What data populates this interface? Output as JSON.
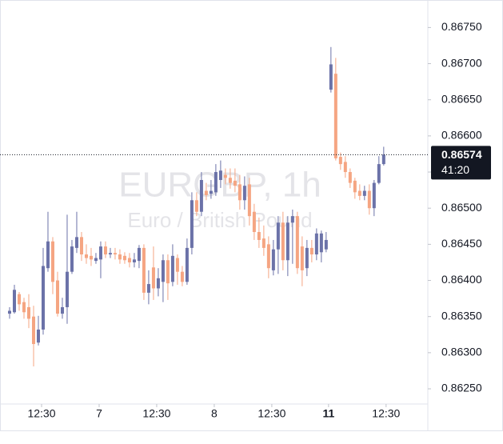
{
  "chart_data": {
    "type": "candlestick",
    "title": "EURGBP, 1h",
    "subtitle": "Euro / British Pound",
    "up_color": "#6b72a8",
    "down_color": "#f5a582",
    "x": [
      0,
      1,
      2,
      3,
      4,
      5,
      6,
      7,
      8,
      9,
      10,
      11,
      12,
      13,
      14,
      15,
      16,
      17,
      18,
      19,
      20,
      21,
      22,
      23,
      24,
      25,
      26,
      27,
      28,
      29,
      30,
      31,
      32,
      33,
      34,
      35,
      36,
      37,
      38,
      39,
      40,
      41,
      42,
      43,
      44,
      45,
      46,
      47,
      48,
      49,
      50,
      51,
      52,
      53,
      54,
      55,
      56,
      57,
      58,
      59,
      60,
      61,
      62,
      63,
      64,
      65,
      66,
      67,
      68,
      69,
      70,
      71,
      72,
      73,
      74,
      75,
      76,
      77,
      78
    ],
    "open": [
      0.86354,
      0.86356,
      0.86381,
      0.8637,
      0.86363,
      0.8635,
      0.86314,
      0.86332,
      0.86417,
      0.86454,
      0.864,
      0.86354,
      0.86363,
      0.86412,
      0.86445,
      0.8646,
      0.86436,
      0.86434,
      0.86427,
      0.86429,
      0.86447,
      0.86436,
      0.86438,
      0.86436,
      0.86434,
      0.86431,
      0.86425,
      0.86427,
      0.86445,
      0.86383,
      0.86418,
      0.86389,
      0.86398,
      0.86428,
      0.86398,
      0.86431,
      0.86412,
      0.86398,
      0.86445,
      0.86511,
      0.86495,
      0.86524,
      0.8652,
      0.86522,
      0.86539,
      0.86546,
      0.86542,
      0.86538,
      0.86533,
      0.86511,
      0.86533,
      0.86495,
      0.86467,
      0.86458,
      0.8645,
      0.86414,
      0.86443,
      0.8648,
      0.86428,
      0.8648,
      0.86489,
      0.86447,
      0.86417,
      0.86445,
      0.86436,
      0.86439,
      0.86443,
      0.86664,
      0.86686,
      0.86571,
      0.86564,
      0.8655,
      0.86538,
      0.86524,
      0.86517,
      0.86524,
      0.865,
      0.86535,
      0.86561
    ],
    "high": [
      0.86363,
      0.86394,
      0.86384,
      0.86376,
      0.86381,
      0.86365,
      0.86351,
      0.86445,
      0.86495,
      0.8646,
      0.86412,
      0.86376,
      0.86491,
      0.86456,
      0.86495,
      0.86467,
      0.8645,
      0.86445,
      0.86438,
      0.86454,
      0.86454,
      0.86445,
      0.86445,
      0.86443,
      0.86439,
      0.86438,
      0.86438,
      0.86449,
      0.8645,
      0.86414,
      0.86447,
      0.86417,
      0.86436,
      0.86436,
      0.8645,
      0.86436,
      0.8642,
      0.86458,
      0.86522,
      0.86522,
      0.8655,
      0.86535,
      0.86539,
      0.86561,
      0.86566,
      0.86555,
      0.86555,
      0.86555,
      0.86546,
      0.86544,
      0.86542,
      0.86506,
      0.86487,
      0.86476,
      0.86461,
      0.86456,
      0.86489,
      0.86495,
      0.86489,
      0.86498,
      0.86495,
      0.86461,
      0.86456,
      0.86456,
      0.86472,
      0.86469,
      0.86467,
      0.86723,
      0.86708,
      0.86577,
      0.86572,
      0.86555,
      0.86542,
      0.86533,
      0.86531,
      0.86533,
      0.86539,
      0.86572,
      0.86585
    ],
    "low": [
      0.86347,
      0.86354,
      0.86358,
      0.86347,
      0.86334,
      0.86281,
      0.8631,
      0.86325,
      0.86412,
      0.86381,
      0.8635,
      0.86347,
      0.8634,
      0.86409,
      0.86438,
      0.86427,
      0.86423,
      0.8642,
      0.86423,
      0.86403,
      0.86431,
      0.86431,
      0.86429,
      0.86423,
      0.86423,
      0.86418,
      0.86418,
      0.86417,
      0.86373,
      0.86367,
      0.86373,
      0.86378,
      0.8637,
      0.86373,
      0.86392,
      0.86394,
      0.86392,
      0.86394,
      0.86436,
      0.86489,
      0.86489,
      0.86511,
      0.86513,
      0.86517,
      0.86528,
      0.86533,
      0.86527,
      0.86522,
      0.86498,
      0.86498,
      0.86476,
      0.86456,
      0.86445,
      0.86434,
      0.86403,
      0.86407,
      0.86409,
      0.86414,
      0.86406,
      0.86423,
      0.86409,
      0.86392,
      0.86406,
      0.86425,
      0.86428,
      0.86425,
      0.86439,
      0.8666,
      0.86566,
      0.86553,
      0.86542,
      0.86528,
      0.86513,
      0.86511,
      0.86511,
      0.86491,
      0.86489,
      0.86533,
      0.86559
    ],
    "close": [
      0.86358,
      0.86387,
      0.86367,
      0.86356,
      0.86347,
      0.86312,
      0.86332,
      0.8642,
      0.86454,
      0.86398,
      0.86354,
      0.86363,
      0.86412,
      0.86447,
      0.8646,
      0.86436,
      0.86431,
      0.86429,
      0.86431,
      0.86447,
      0.86436,
      0.86438,
      0.86436,
      0.86429,
      0.86428,
      0.86425,
      0.86429,
      0.86445,
      0.86383,
      0.86395,
      0.86389,
      0.86403,
      0.86428,
      0.86396,
      0.86434,
      0.86412,
      0.86398,
      0.86445,
      0.86511,
      0.86495,
      0.86539,
      0.86518,
      0.86524,
      0.8655,
      0.86552,
      0.86542,
      0.86535,
      0.86531,
      0.86511,
      0.86531,
      0.86489,
      0.86467,
      0.86456,
      0.86445,
      0.86417,
      0.86443,
      0.8648,
      0.86428,
      0.8648,
      0.86489,
      0.86417,
      0.86414,
      0.86445,
      0.86436,
      0.86465,
      0.86465,
      0.86456,
      0.86699,
      0.86569,
      0.86561,
      0.8655,
      0.86535,
      0.86522,
      0.86517,
      0.86524,
      0.865,
      0.86535,
      0.86561,
      0.86574
    ],
    "xlim": [
      -0.5,
      87.2
    ],
    "xticks": [
      {
        "value": 6.67,
        "label": "12:30"
      },
      {
        "value": 18.67,
        "label": "7"
      },
      {
        "value": 30.67,
        "label": "12:30"
      },
      {
        "value": 42.67,
        "label": "8"
      },
      {
        "value": 54.67,
        "label": "12:30"
      },
      {
        "value": 66.5,
        "label": "11"
      },
      {
        "value": 78.5,
        "label": "12:30"
      }
    ],
    "ylim": [
      0.86229,
      0.86777
    ],
    "yticks": [
      {
        "value": 0.8625,
        "label": "0.86250"
      },
      {
        "value": 0.863,
        "label": "0.86300"
      },
      {
        "value": 0.8635,
        "label": "0.86350"
      },
      {
        "value": 0.864,
        "label": "0.86400"
      },
      {
        "value": 0.8645,
        "label": "0.86450"
      },
      {
        "value": 0.865,
        "label": "0.86500"
      },
      {
        "value": 0.8655,
        "label": "0.86550"
      },
      {
        "value": 0.866,
        "label": "0.86600"
      },
      {
        "value": 0.8665,
        "label": "0.86650"
      },
      {
        "value": 0.867,
        "label": "0.86700"
      },
      {
        "value": 0.8675,
        "label": "0.86750"
      }
    ],
    "last_price": {
      "value": 0.86574,
      "label": "0.86574",
      "countdown": "41:20"
    },
    "bold_xtick": 5
  }
}
